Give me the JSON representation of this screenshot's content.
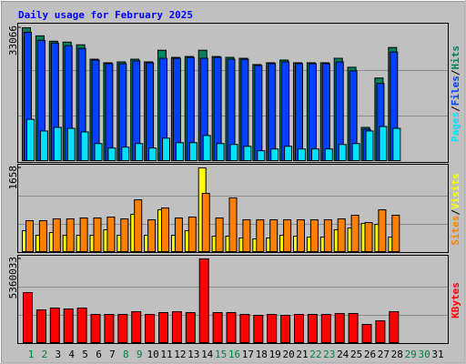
{
  "title": "Daily usage for February 2025",
  "chart_data": [
    {
      "type": "bar",
      "categories": [
        "1",
        "2",
        "3",
        "4",
        "5",
        "6",
        "7",
        "8",
        "9",
        "10",
        "11",
        "12",
        "13",
        "14",
        "15",
        "16",
        "17",
        "18",
        "19",
        "20",
        "21",
        "22",
        "23",
        "24",
        "25",
        "26",
        "27",
        "28",
        "29",
        "30",
        "31"
      ],
      "series": [
        {
          "name": "Hits",
          "color": "#00805c",
          "values": [
            33066,
            31050,
            29710,
            29490,
            28820,
            25240,
            24350,
            24570,
            25240,
            24570,
            27470,
            25690,
            25910,
            27470,
            25910,
            25690,
            25470,
            23900,
            24350,
            25020,
            24350,
            24350,
            24350,
            25470,
            23230,
            8270,
            20550,
            28150,
            null,
            null,
            null
          ]
        },
        {
          "name": "Files",
          "color": "#0040ff",
          "values": [
            31950,
            29940,
            29270,
            28600,
            27920,
            25020,
            24130,
            24130,
            24800,
            24350,
            25470,
            25470,
            25690,
            25470,
            25690,
            25240,
            25240,
            23680,
            24130,
            24570,
            24130,
            24130,
            24130,
            24570,
            22340,
            7820,
            19210,
            27030,
            null,
            null,
            null
          ]
        },
        {
          "name": "Pages",
          "color": "#00e0ff",
          "values": [
            10280,
            7370,
            8270,
            8040,
            7150,
            4240,
            3130,
            3350,
            4240,
            3130,
            5580,
            4470,
            4470,
            6250,
            4240,
            4020,
            3570,
            2460,
            2900,
            3570,
            2900,
            2900,
            2900,
            4020,
            4240,
            7370,
            8490,
            8040,
            null,
            null,
            null
          ]
        }
      ],
      "ylim": [
        0,
        33066
      ],
      "yticks": [
        33066
      ]
    },
    {
      "type": "bar",
      "categories": [
        "1",
        "2",
        "3",
        "4",
        "5",
        "6",
        "7",
        "8",
        "9",
        "10",
        "11",
        "12",
        "13",
        "14",
        "15",
        "16",
        "17",
        "18",
        "19",
        "20",
        "21",
        "22",
        "23",
        "24",
        "25",
        "26",
        "27",
        "28",
        "29",
        "30",
        "31"
      ],
      "series": [
        {
          "name": "Visits",
          "color": "#ffff00",
          "values": [
            414,
            324,
            378,
            324,
            324,
            324,
            432,
            324,
            738,
            324,
            828,
            324,
            414,
            1658,
            306,
            306,
            270,
            252,
            270,
            324,
            306,
            288,
            288,
            432,
            468,
            558,
            540,
            288,
            null,
            null,
            null
          ]
        },
        {
          "name": "Sites",
          "color": "#ff8000",
          "values": [
            612,
            612,
            648,
            648,
            666,
            666,
            684,
            648,
            1026,
            630,
            864,
            666,
            684,
            1152,
            666,
            1062,
            630,
            630,
            630,
            630,
            630,
            630,
            630,
            648,
            720,
            576,
            828,
            720,
            null,
            null,
            null
          ]
        }
      ],
      "ylim": [
        0,
        1658
      ],
      "yticks": [
        1658
      ]
    },
    {
      "type": "bar",
      "categories": [
        "1",
        "2",
        "3",
        "4",
        "5",
        "6",
        "7",
        "8",
        "9",
        "10",
        "11",
        "12",
        "13",
        "14",
        "15",
        "16",
        "17",
        "18",
        "19",
        "20",
        "21",
        "22",
        "23",
        "24",
        "25",
        "26",
        "27",
        "28",
        "29",
        "30",
        "31"
      ],
      "category_colors": [
        "#008040",
        "#008040",
        "#000000",
        "#000000",
        "#000000",
        "#000000",
        "#000000",
        "#008040",
        "#008040",
        "#000000",
        "#000000",
        "#000000",
        "#000000",
        "#000000",
        "#008040",
        "#008040",
        "#000000",
        "#000000",
        "#000000",
        "#000000",
        "#000000",
        "#008040",
        "#008040",
        "#000000",
        "#000000",
        "#000000",
        "#000000",
        "#000000",
        "#008040",
        "#008040",
        "#000000"
      ],
      "series": [
        {
          "name": "KBytes",
          "color": "#ff0000",
          "values": [
            3204355,
            2097396,
            2213918,
            2155657,
            2213918,
            1806091,
            1806091,
            1806091,
            1980874,
            1806091,
            1922613,
            1980874,
            1922613,
            5360033,
            1922613,
            1922613,
            1806091,
            1747830,
            1806091,
            1747830,
            1806091,
            1806091,
            1806091,
            1864352,
            1864352,
            1165220,
            1398264,
            1980874,
            null,
            null,
            null
          ]
        }
      ],
      "ylim": [
        0,
        5360033
      ],
      "yticks": [
        5360033
      ]
    }
  ]
}
